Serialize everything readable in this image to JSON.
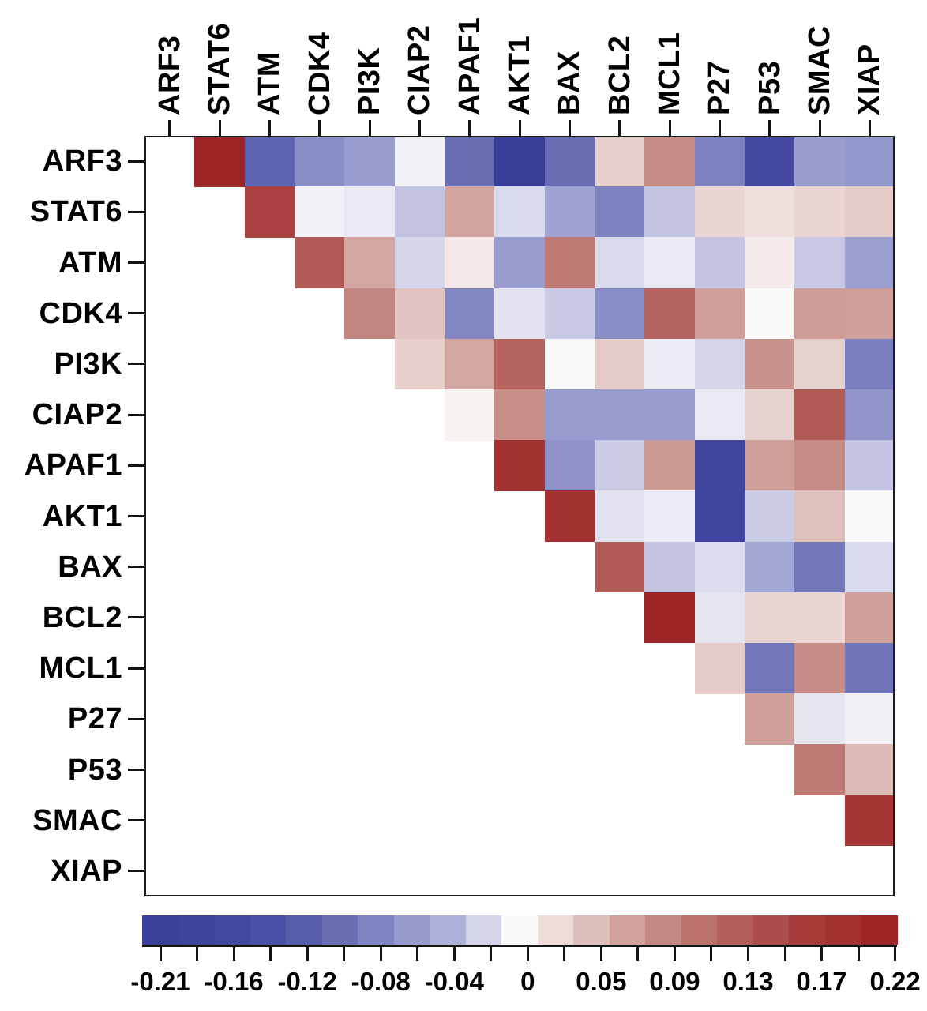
{
  "figure": {
    "background_color": "#ffffff",
    "axis_color": "#141414",
    "label_color": "#000000"
  },
  "chart_data": {
    "type": "heatmap",
    "subtype": "correlation-matrix-upper-triangle",
    "grid": "off",
    "genes": [
      "ARF3",
      "STAT6",
      "ATM",
      "CDK4",
      "PI3K",
      "CIAP2",
      "APAF1",
      "AKT1",
      "BAX",
      "BCL2",
      "MCL1",
      "P27",
      "P53",
      "SMAC",
      "XIAP"
    ],
    "matrix": [
      [
        null,
        0.215,
        -0.115,
        -0.075,
        -0.06,
        -0.005,
        -0.105,
        -0.22,
        -0.105,
        0.03,
        0.08,
        -0.085,
        -0.16,
        -0.06,
        -0.065
      ],
      [
        null,
        null,
        0.16,
        -0.005,
        -0.01,
        -0.031,
        0.062,
        -0.018,
        -0.055,
        -0.085,
        -0.03,
        0.026,
        0.018,
        0.026,
        0.032
      ],
      [
        null,
        null,
        null,
        0.13,
        0.06,
        -0.02,
        0.012,
        -0.06,
        0.095,
        -0.018,
        -0.01,
        -0.03,
        0.01,
        -0.028,
        -0.058
      ],
      [
        null,
        null,
        null,
        null,
        0.085,
        0.038,
        -0.08,
        -0.014,
        -0.027,
        -0.075,
        0.12,
        0.066,
        0.0,
        0.067,
        0.066
      ],
      [
        null,
        null,
        null,
        null,
        null,
        0.03,
        0.06,
        0.12,
        0.001,
        0.033,
        -0.008,
        -0.02,
        0.075,
        0.028,
        -0.088
      ],
      [
        null,
        null,
        null,
        null,
        null,
        null,
        0.005,
        0.078,
        -0.062,
        -0.062,
        -0.062,
        -0.01,
        0.028,
        0.13,
        -0.068
      ],
      [
        null,
        null,
        null,
        null,
        null,
        null,
        null,
        0.185,
        -0.07,
        -0.026,
        0.07,
        -0.18,
        0.066,
        0.08,
        -0.03
      ],
      [
        null,
        null,
        null,
        null,
        null,
        null,
        null,
        null,
        0.185,
        -0.014,
        -0.008,
        -0.18,
        -0.026,
        0.04,
        0.001
      ],
      [
        null,
        null,
        null,
        null,
        null,
        null,
        null,
        null,
        null,
        0.13,
        -0.03,
        -0.017,
        -0.052,
        -0.095,
        -0.018
      ],
      [
        null,
        null,
        null,
        null,
        null,
        null,
        null,
        null,
        null,
        null,
        0.215,
        -0.012,
        0.026,
        0.026,
        0.066
      ],
      [
        null,
        null,
        null,
        null,
        null,
        null,
        null,
        null,
        null,
        null,
        null,
        0.033,
        -0.096,
        0.08,
        -0.098
      ],
      [
        null,
        null,
        null,
        null,
        null,
        null,
        null,
        null,
        null,
        null,
        null,
        null,
        0.066,
        -0.012,
        -0.006
      ],
      [
        null,
        null,
        null,
        null,
        null,
        null,
        null,
        null,
        null,
        null,
        null,
        null,
        null,
        0.095,
        0.046
      ],
      [
        null,
        null,
        null,
        null,
        null,
        null,
        null,
        null,
        null,
        null,
        null,
        null,
        null,
        null,
        0.18
      ],
      [
        null,
        null,
        null,
        null,
        null,
        null,
        null,
        null,
        null,
        null,
        null,
        null,
        null,
        null,
        null
      ]
    ],
    "colorbar": {
      "orientation": "horizontal",
      "tick_labels": [
        "-0.21",
        "-0.16",
        "-0.12",
        "-0.08",
        "-0.04",
        "0",
        "0.05",
        "0.09",
        "0.13",
        "0.17",
        "0.22"
      ],
      "num_minor_ticks_total": 21,
      "value_at_first_tick": -0.21,
      "value_step_per_tick": 0.0215,
      "colormap_stops": [
        [
          -0.23,
          "#343a92"
        ],
        [
          -0.21,
          "#3c409b"
        ],
        [
          -0.185,
          "#40449e"
        ],
        [
          -0.16,
          "#4448a1"
        ],
        [
          -0.12,
          "#5a5fad"
        ],
        [
          -0.08,
          "#8287c3"
        ],
        [
          -0.04,
          "#b0b3da"
        ],
        [
          -0.005,
          "#f2f1f7"
        ],
        [
          0,
          "#fbfafb"
        ],
        [
          0.005,
          "#f8f2f1"
        ],
        [
          0.05,
          "#d9b3af"
        ],
        [
          0.09,
          "#c08079"
        ],
        [
          0.13,
          "#b25b56"
        ],
        [
          0.17,
          "#a63a38"
        ],
        [
          0.22,
          "#9c2125"
        ],
        [
          0.24,
          "#992023"
        ]
      ]
    }
  }
}
